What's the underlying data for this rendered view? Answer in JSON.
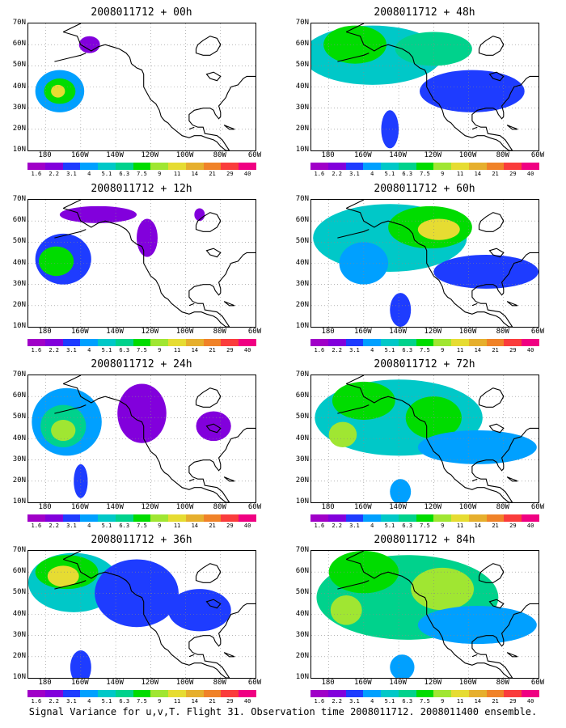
{
  "figure": {
    "caption": "Signal Variance for u,v,T. Flight 31. Observation time 2008011712. 2008011400 ensemble."
  },
  "axes": {
    "lat_labels": [
      "70N",
      "60N",
      "50N",
      "40N",
      "30N",
      "20N",
      "10N"
    ],
    "lon_labels": [
      "180",
      "160W",
      "140W",
      "120W",
      "100W",
      "80W",
      "60W"
    ]
  },
  "colorbar": {
    "levels": [
      "1.6",
      "2.2",
      "3.1",
      "4",
      "5.1",
      "6.3",
      "7.5",
      "9",
      "11",
      "14",
      "21",
      "29",
      "40"
    ],
    "colors": [
      "#a000c8",
      "#8200dc",
      "#1e3cff",
      "#00a0ff",
      "#00c8c8",
      "#00d28c",
      "#00dc00",
      "#a0e632",
      "#e6dc32",
      "#e6af2d",
      "#f08228",
      "#fa3c3c",
      "#f00082"
    ]
  },
  "panels": [
    {
      "title": "2008011712 + 00h",
      "intensity": 0
    },
    {
      "title": "2008011712 + 12h",
      "intensity": 1
    },
    {
      "title": "2008011712 + 24h",
      "intensity": 2
    },
    {
      "title": "2008011712 + 36h",
      "intensity": 3
    },
    {
      "title": "2008011712 + 48h",
      "intensity": 3
    },
    {
      "title": "2008011712 + 60h",
      "intensity": 4
    },
    {
      "title": "2008011712 + 72h",
      "intensity": 4
    },
    {
      "title": "2008011712 + 84h",
      "intensity": 5
    }
  ]
}
